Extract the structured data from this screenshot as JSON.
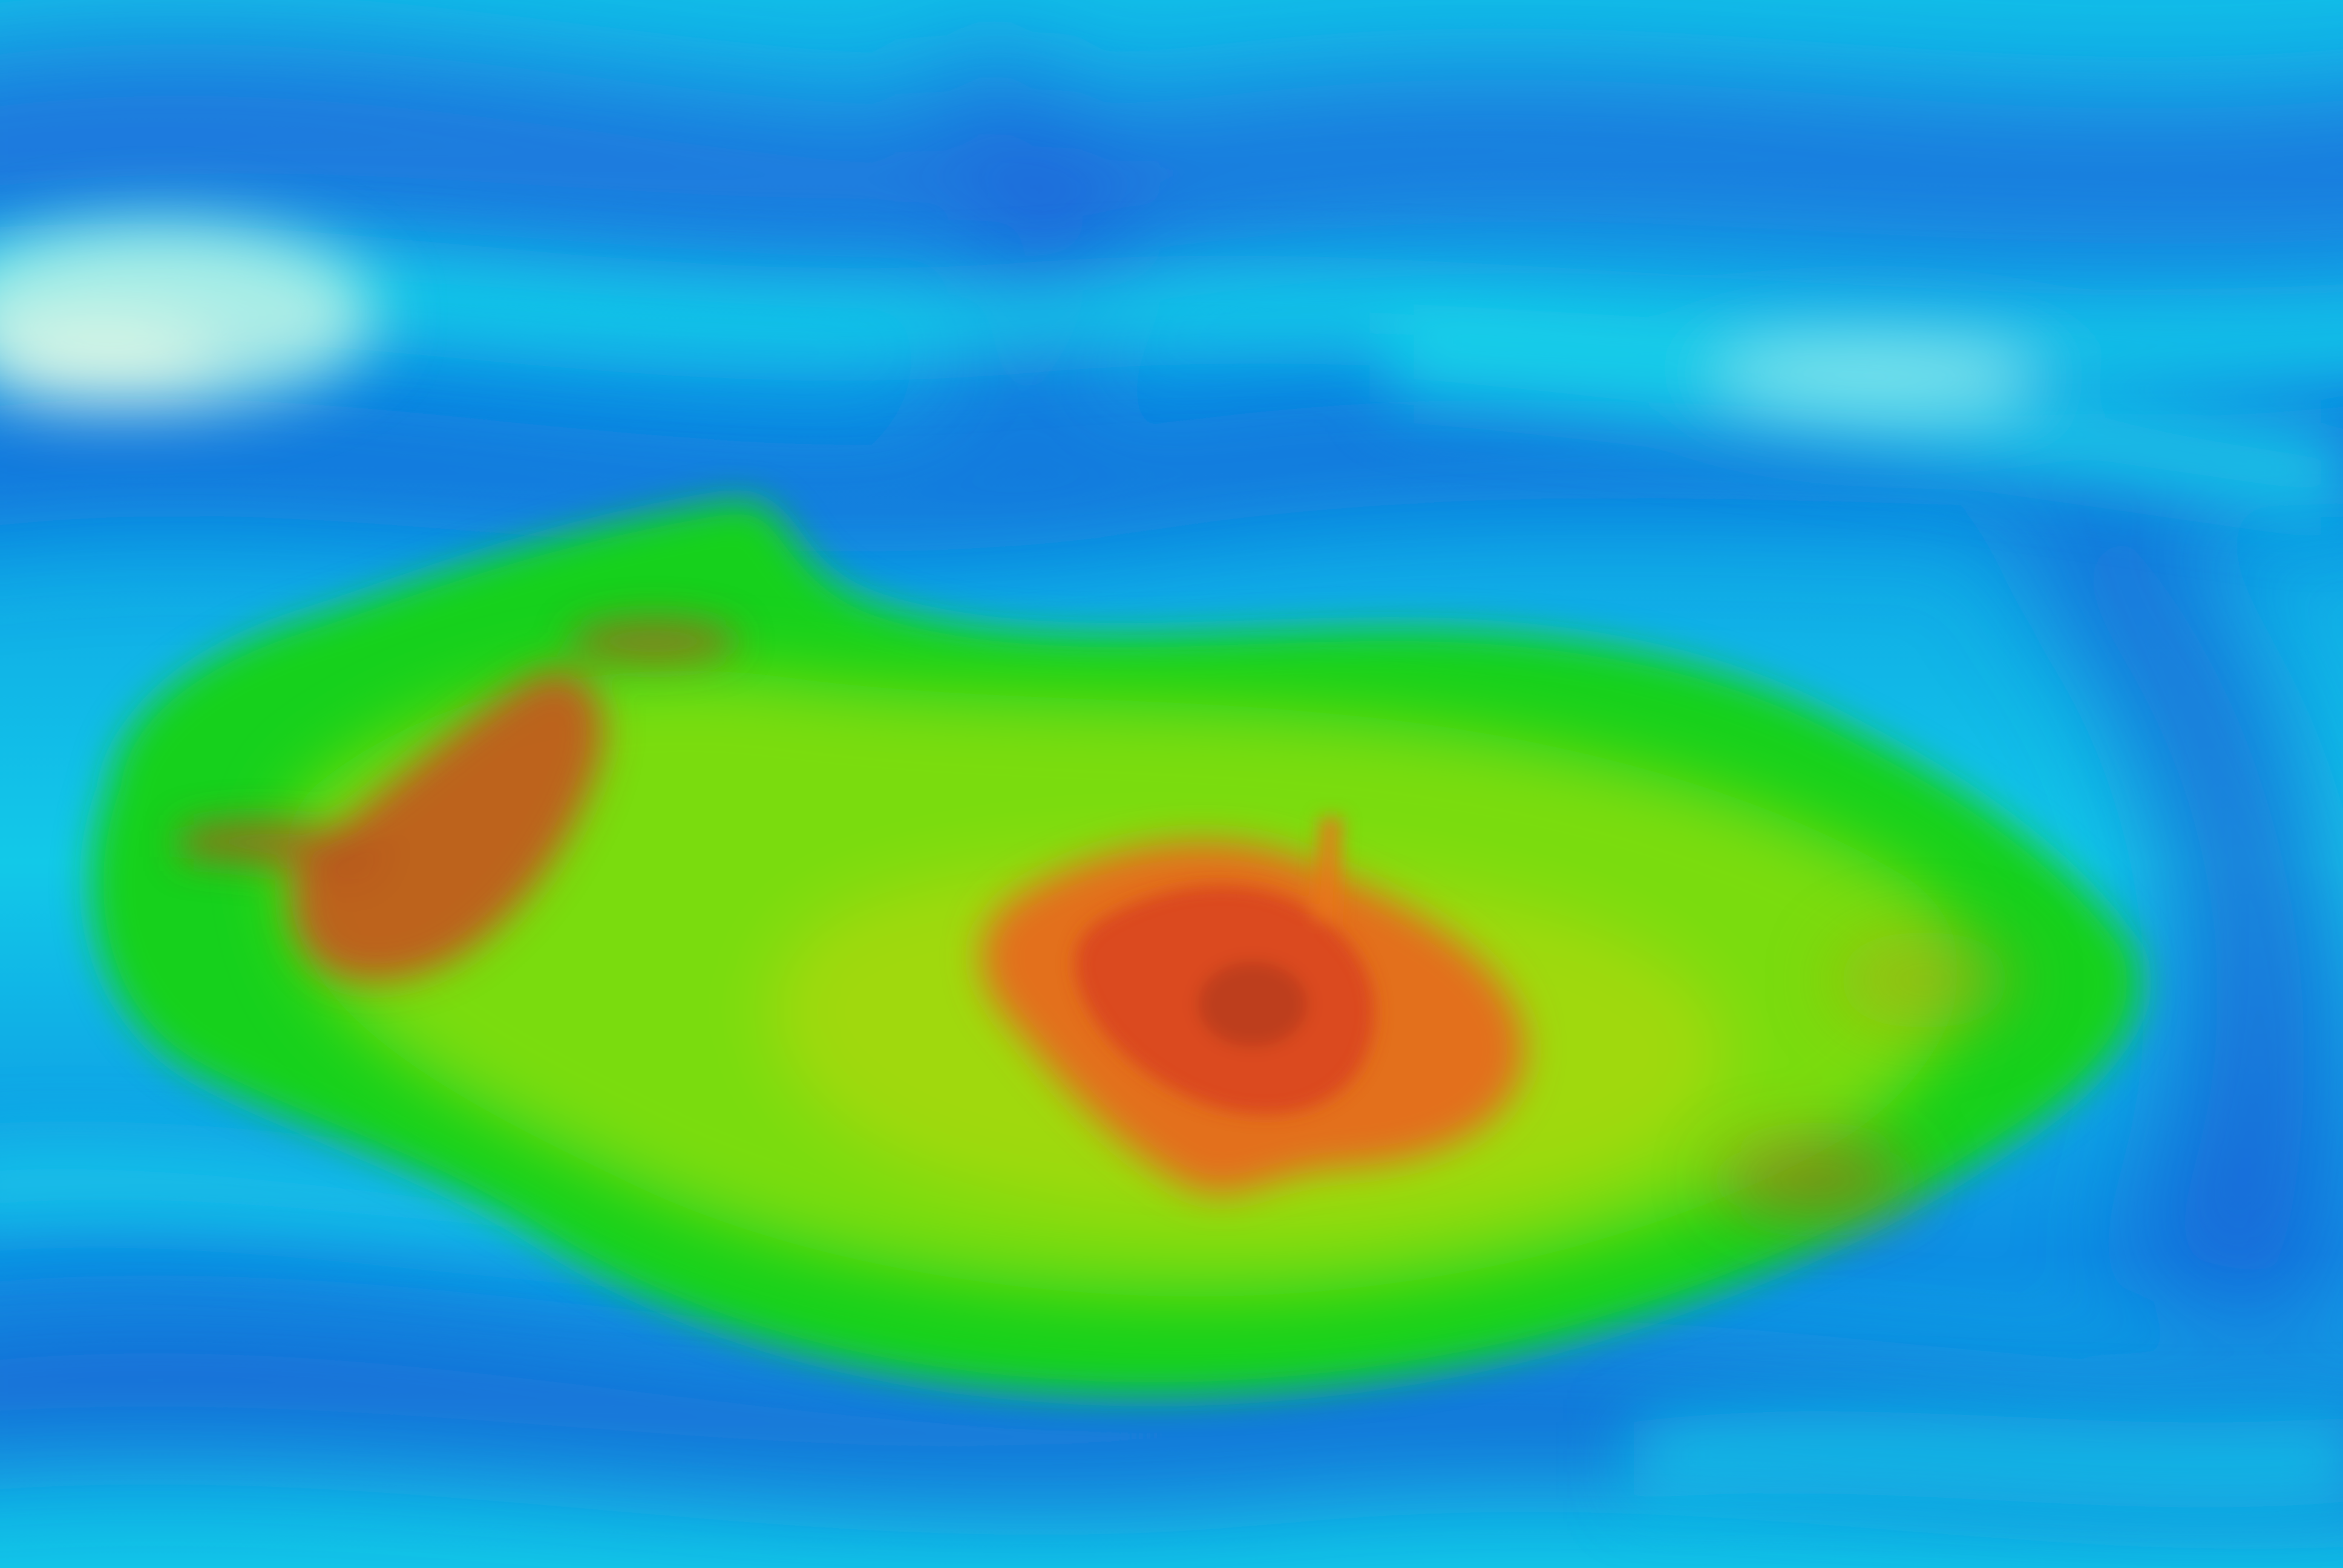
{
  "image": {
    "kind": "photo",
    "subject": "abstract-heatmap-blob",
    "palette": {
      "deep_blue": "#1f5fd8",
      "blue": "#0f86e6",
      "cyan": "#12cde8",
      "pale_cyan": "#b8f3ea",
      "green": "#19d31a",
      "lime": "#86e00f",
      "yellow_green": "#b7d80f",
      "orange": "#e8741c",
      "red_brown": "#b8401e"
    }
  }
}
